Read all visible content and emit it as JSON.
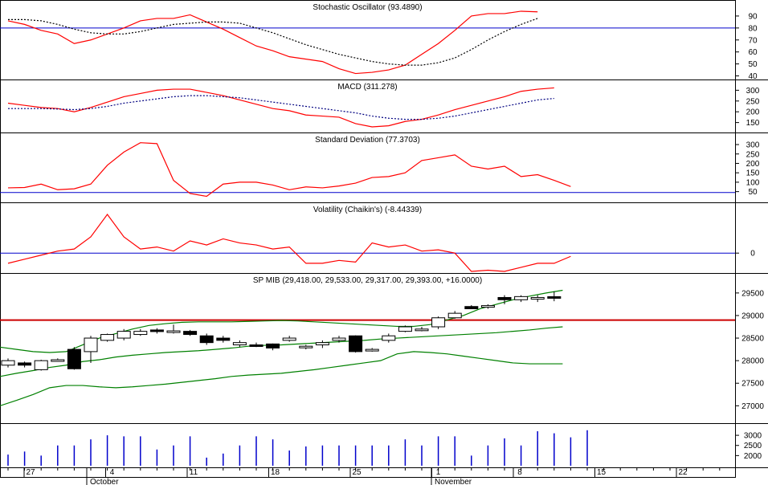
{
  "chart_data": [
    {
      "type": "line",
      "title": "Stochastic Oscillator (93.4890)",
      "ylim": [
        37,
        98
      ],
      "yticks": [
        40,
        50,
        60,
        70,
        80,
        90
      ],
      "reference_line": 80,
      "series": [
        {
          "values": [
            86,
            83,
            78,
            75,
            67,
            70,
            75,
            80,
            86,
            88,
            88,
            91,
            85,
            79,
            72,
            65,
            61,
            56,
            54,
            52,
            46,
            42,
            43,
            45,
            49,
            58,
            67,
            78,
            90,
            92,
            92,
            94,
            93.5
          ],
          "color": "#ff0000",
          "style": "solid"
        },
        {
          "values": [
            87,
            87,
            86,
            83,
            79,
            76,
            75,
            75,
            77,
            80,
            83,
            84,
            85,
            85,
            84,
            80,
            76,
            71,
            66,
            62,
            58,
            55,
            52,
            50,
            49,
            49,
            51,
            55,
            62,
            70,
            77,
            83,
            88
          ],
          "color": "#000000",
          "style": "dotted"
        }
      ]
    },
    {
      "type": "line",
      "title": "MACD (311.278)",
      "ylim": [
        115,
        335
      ],
      "yticks": [
        150,
        200,
        250,
        300
      ],
      "series": [
        {
          "values": [
            240,
            230,
            220,
            215,
            200,
            220,
            245,
            270,
            285,
            300,
            305,
            305,
            290,
            275,
            255,
            235,
            215,
            205,
            185,
            180,
            175,
            145,
            130,
            135,
            155,
            165,
            185,
            210,
            230,
            250,
            270,
            295,
            305,
            311
          ],
          "color": "#ff0000",
          "style": "solid"
        },
        {
          "values": [
            215,
            215,
            215,
            213,
            210,
            215,
            225,
            240,
            250,
            260,
            270,
            275,
            275,
            270,
            265,
            255,
            245,
            235,
            225,
            215,
            205,
            195,
            180,
            170,
            165,
            165,
            170,
            180,
            195,
            210,
            225,
            240,
            255,
            262
          ],
          "color": "#000080",
          "style": "dotted"
        }
      ]
    },
    {
      "type": "line",
      "title": "Standard Deviation (77.3703)",
      "ylim": [
        10,
        330
      ],
      "yticks": [
        50,
        100,
        150,
        200,
        250,
        300
      ],
      "reference_line": 45,
      "series": [
        {
          "values": [
            70,
            72,
            90,
            60,
            65,
            90,
            190,
            260,
            310,
            305,
            110,
            40,
            25,
            90,
            100,
            100,
            85,
            60,
            75,
            70,
            80,
            95,
            125,
            130,
            150,
            215,
            230,
            245,
            185,
            170,
            185,
            130,
            140,
            110,
            77
          ],
          "color": "#ff0000",
          "style": "solid"
        }
      ]
    },
    {
      "type": "line",
      "title": "Volatility (Chaikin's) (-8.44339)",
      "ylim": [
        -45,
        105
      ],
      "yticks": [
        0
      ],
      "reference_line": 0,
      "series": [
        {
          "values": [
            -25,
            -15,
            -5,
            5,
            10,
            40,
            95,
            40,
            10,
            15,
            5,
            30,
            20,
            35,
            25,
            20,
            10,
            15,
            -25,
            -25,
            -18,
            -22,
            25,
            15,
            20,
            5,
            8,
            0,
            -45,
            -42,
            -45,
            -35,
            -25,
            -25,
            -8
          ],
          "color": "#ff0000",
          "style": "solid"
        }
      ]
    },
    {
      "type": "candlestick",
      "title": "SP MIB (29,418.00, 29,533.00, 29,317.00, 29,393.00, +16.0000)",
      "ylim": [
        26650,
        29800
      ],
      "yticks": [
        27000,
        27500,
        28000,
        28500,
        29000,
        29500
      ],
      "support_line": 28900,
      "candles": [
        [
          27900,
          28050,
          27850,
          28000
        ],
        [
          27950,
          27980,
          27850,
          27900
        ],
        [
          27800,
          28020,
          27780,
          28000
        ],
        [
          28000,
          28050,
          27980,
          28020
        ],
        [
          28250,
          28300,
          27800,
          27820
        ],
        [
          28200,
          28550,
          27950,
          28500
        ],
        [
          28450,
          28600,
          28420,
          28580
        ],
        [
          28500,
          28700,
          28450,
          28650
        ],
        [
          28580,
          28700,
          28550,
          28650
        ],
        [
          28680,
          28720,
          28600,
          28650
        ],
        [
          28650,
          28800,
          28600,
          28660
        ],
        [
          28650,
          28680,
          28550,
          28580
        ],
        [
          28550,
          28600,
          28350,
          28400
        ],
        [
          28500,
          28550,
          28400,
          28450
        ],
        [
          28350,
          28450,
          28300,
          28400
        ],
        [
          28350,
          28400,
          28300,
          28320
        ],
        [
          28370,
          28380,
          28230,
          28280
        ],
        [
          28450,
          28550,
          28420,
          28500
        ],
        [
          28300,
          28350,
          28250,
          28320
        ],
        [
          28350,
          28450,
          28280,
          28400
        ],
        [
          28450,
          28550,
          28400,
          28500
        ],
        [
          28550,
          28560,
          28180,
          28200
        ],
        [
          28250,
          28280,
          28200,
          28250
        ],
        [
          28450,
          28600,
          28400,
          28550
        ],
        [
          28650,
          28780,
          28630,
          28750
        ],
        [
          28700,
          28750,
          28650,
          28700
        ],
        [
          28750,
          28980,
          28700,
          28950
        ],
        [
          28950,
          29100,
          28930,
          29050
        ],
        [
          29200,
          29230,
          29150,
          29150
        ],
        [
          29200,
          29250,
          29150,
          29220
        ],
        [
          29400,
          29450,
          29250,
          29350
        ],
        [
          29350,
          29450,
          29300,
          29420
        ],
        [
          29380,
          29450,
          29300,
          29400
        ],
        [
          29418,
          29533,
          29317,
          29393
        ]
      ],
      "candle_colors": {
        "up": "#ffffff",
        "down": "#000000",
        "doji": "#0000ff"
      },
      "bands": [
        {
          "name_hidden": "upper",
          "values": [
            28300,
            28250,
            28200,
            28180,
            28200,
            28350,
            28500,
            28600,
            28700,
            28780,
            28820,
            28850,
            28860,
            28860,
            28860,
            28870,
            28880,
            28890,
            28880,
            28860,
            28840,
            28820,
            28800,
            28780,
            28760,
            28760,
            28800,
            28900,
            29000,
            29150,
            29250,
            29350,
            29430,
            29500,
            29560
          ],
          "color": "#008000"
        },
        {
          "name_hidden": "middle",
          "values": [
            27650,
            27720,
            27780,
            27850,
            27900,
            27980,
            28020,
            28080,
            28120,
            28150,
            28180,
            28200,
            28220,
            28250,
            28280,
            28320,
            28340,
            28350,
            28370,
            28390,
            28410,
            28430,
            28450,
            28480,
            28500,
            28520,
            28540,
            28560,
            28580,
            28600,
            28620,
            28650,
            28680,
            28720,
            28750
          ],
          "color": "#008000"
        },
        {
          "name_hidden": "lower",
          "values": [
            27000,
            27120,
            27250,
            27400,
            27450,
            27450,
            27420,
            27400,
            27420,
            27450,
            27480,
            27520,
            27560,
            27600,
            27650,
            27680,
            27700,
            27720,
            27760,
            27800,
            27850,
            27900,
            27950,
            28000,
            28150,
            28200,
            28180,
            28150,
            28100,
            28050,
            28000,
            27950,
            27930,
            27930,
            27930
          ],
          "color": "#008000"
        }
      ]
    },
    {
      "type": "bar",
      "title": "",
      "ylim": [
        1500,
        3400
      ],
      "yticks": [
        2000,
        2500,
        3000
      ],
      "values": [
        2050,
        2200,
        2000,
        2500,
        2500,
        2800,
        3000,
        2950,
        2950,
        2300,
        2500,
        2950,
        1900,
        2100,
        2500,
        2950,
        2800,
        2250,
        2450,
        2500,
        2500,
        2500,
        2500,
        2500,
        2800,
        2500,
        2950,
        2950,
        2000,
        2500,
        2850,
        2500,
        3200,
        3100,
        2900,
        3250
      ],
      "color": "#0000cc"
    }
  ],
  "x_axis": {
    "tick_labels": [
      "27",
      "4",
      "11",
      "18",
      "25",
      "1",
      "8",
      "15",
      "22"
    ],
    "months": [
      "October",
      "November"
    ]
  },
  "colors": {
    "reference": "#0000cc",
    "support": "#cc0000",
    "frame": "#000000"
  }
}
